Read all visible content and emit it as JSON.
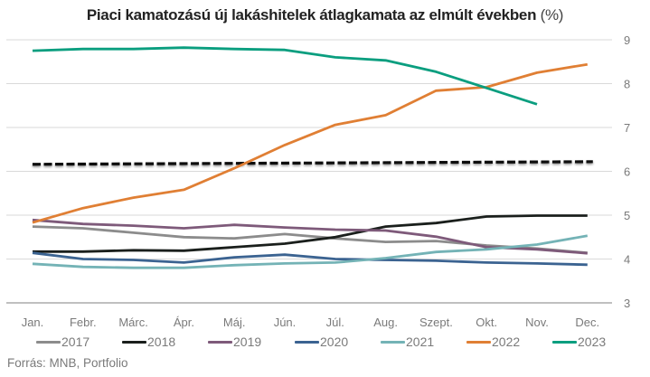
{
  "chart_data": {
    "type": "line",
    "title": "Piaci kamatozású új lakáshitelek átlagkamata az elmúlt években",
    "title_unit": "(%)",
    "xlabel": "",
    "ylabel": "",
    "categories": [
      "Jan.",
      "Febr.",
      "Márc.",
      "Ápr.",
      "Máj.",
      "Jún.",
      "Júl.",
      "Aug.",
      "Szept.",
      "Okt.",
      "Nov.",
      "Dec."
    ],
    "ylim": [
      3,
      9
    ],
    "yticks": [
      3,
      4,
      5,
      6,
      7,
      8,
      9
    ],
    "y_axis_side": "right",
    "grid": true,
    "legend_position": "bottom",
    "series": [
      {
        "name": "2017",
        "color": "#8c8c8c",
        "values": [
          4.74,
          4.7,
          4.6,
          4.5,
          4.47,
          4.57,
          4.47,
          4.39,
          4.41,
          4.31,
          4.24,
          4.14
        ]
      },
      {
        "name": "2018",
        "color": "#1a1f1c",
        "values": [
          4.17,
          4.17,
          4.2,
          4.19,
          4.27,
          4.35,
          4.5,
          4.74,
          4.82,
          4.97,
          4.99,
          4.99
        ]
      },
      {
        "name": "2019",
        "color": "#7e5a7a",
        "values": [
          4.89,
          4.8,
          4.76,
          4.7,
          4.78,
          4.72,
          4.67,
          4.65,
          4.51,
          4.27,
          4.22,
          4.13
        ]
      },
      {
        "name": "2020",
        "color": "#3b6391",
        "values": [
          4.14,
          4.0,
          3.98,
          3.92,
          4.04,
          4.1,
          4.0,
          3.98,
          3.96,
          3.92,
          3.9,
          3.87
        ]
      },
      {
        "name": "2021",
        "color": "#74b3b6",
        "values": [
          3.89,
          3.82,
          3.8,
          3.8,
          3.86,
          3.9,
          3.92,
          4.02,
          4.16,
          4.22,
          4.33,
          4.53
        ]
      },
      {
        "name": "2022",
        "color": "#e07f34",
        "values": [
          4.83,
          5.16,
          5.4,
          5.58,
          6.07,
          6.6,
          7.06,
          7.28,
          7.84,
          7.92,
          8.25,
          8.44
        ]
      },
      {
        "name": "2023",
        "color": "#0a9e7f",
        "values": [
          8.75,
          8.79,
          8.79,
          8.82,
          8.79,
          8.77,
          8.6,
          8.53,
          8.27,
          7.9,
          7.53,
          null
        ]
      }
    ],
    "reference_line": {
      "style": "dashed",
      "color": "#111111",
      "start_value": 6.16,
      "end_value": 6.22
    }
  },
  "source": "Forrás: MNB, Portfolio"
}
